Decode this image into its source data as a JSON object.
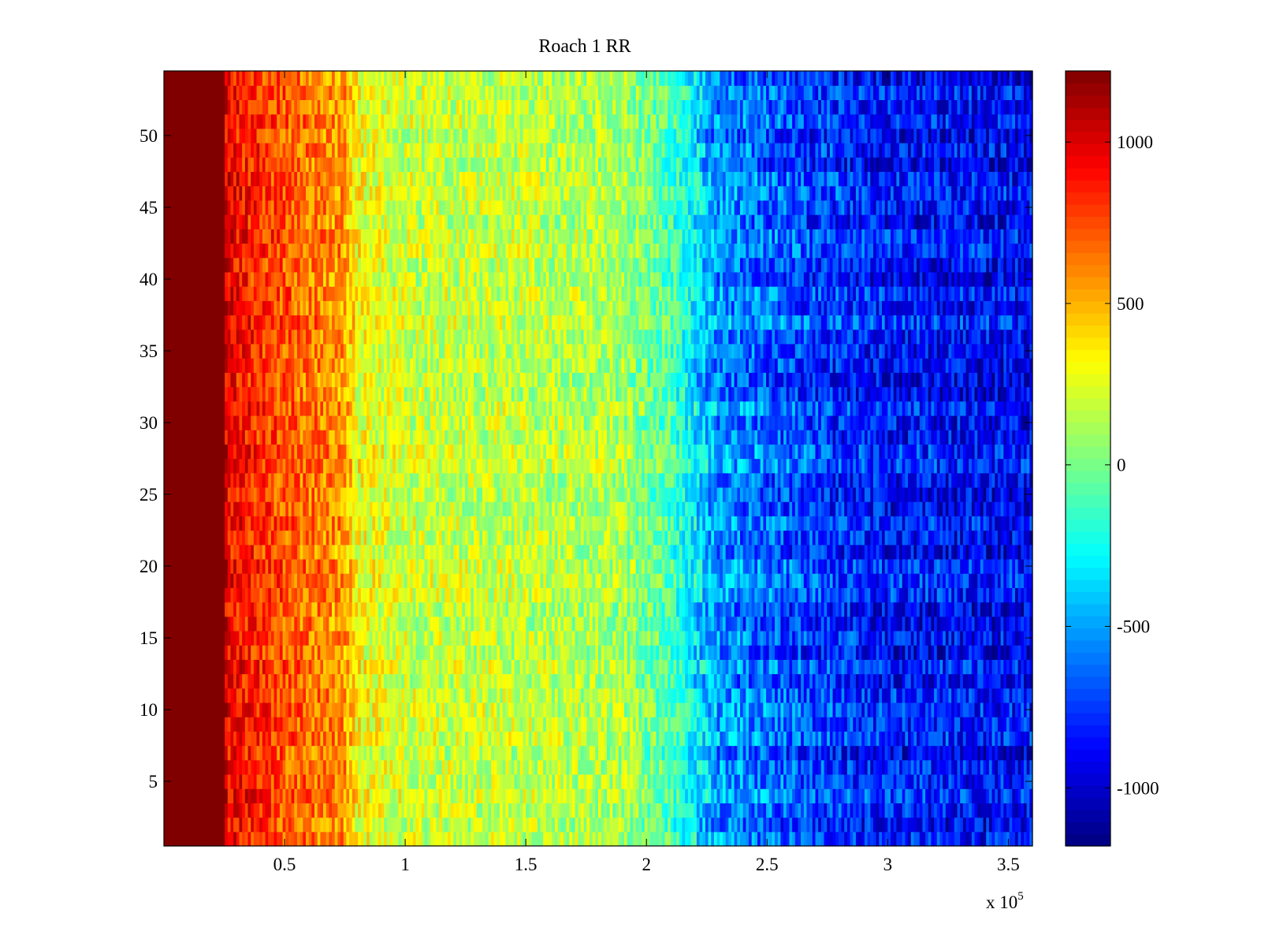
{
  "chart_data": {
    "type": "heatmap",
    "title": "Roach 1 RR",
    "xlabel": "",
    "ylabel": "",
    "x_multiplier_label": {
      "base": "x 10",
      "exponent": "5"
    },
    "xlim": [
      0,
      3.6
    ],
    "ylim": [
      0.5,
      54.5
    ],
    "xticks": [
      {
        "value": 0.5,
        "label": "0.5"
      },
      {
        "value": 1,
        "label": "1"
      },
      {
        "value": 1.5,
        "label": "1.5"
      },
      {
        "value": 2,
        "label": "2"
      },
      {
        "value": 2.5,
        "label": "2.5"
      },
      {
        "value": 3,
        "label": "3"
      },
      {
        "value": 3.5,
        "label": "3.5"
      }
    ],
    "yticks": [
      {
        "value": 5,
        "label": "5"
      },
      {
        "value": 10,
        "label": "10"
      },
      {
        "value": 15,
        "label": "15"
      },
      {
        "value": 20,
        "label": "20"
      },
      {
        "value": 25,
        "label": "25"
      },
      {
        "value": 30,
        "label": "30"
      },
      {
        "value": 35,
        "label": "35"
      },
      {
        "value": 40,
        "label": "40"
      },
      {
        "value": 45,
        "label": "45"
      },
      {
        "value": 50,
        "label": "50"
      }
    ],
    "colorbar": {
      "colormap": "jet",
      "range": [
        -1180,
        1220
      ],
      "ticks": [
        {
          "value": 1000,
          "label": "1000"
        },
        {
          "value": 500,
          "label": "500"
        },
        {
          "value": 0,
          "label": "0"
        },
        {
          "value": -500,
          "label": "-500"
        },
        {
          "value": -1000,
          "label": "-1000"
        }
      ]
    },
    "rows": 54,
    "x_range": [
      0,
      3.6
    ],
    "value_profile": [
      {
        "x": 0.0,
        "value": 1220
      },
      {
        "x": 0.25,
        "value": 1220
      },
      {
        "x": 0.26,
        "value": 950
      },
      {
        "x": 0.5,
        "value": 720
      },
      {
        "x": 0.75,
        "value": 560
      },
      {
        "x": 0.8,
        "value": 300
      },
      {
        "x": 1.0,
        "value": 200
      },
      {
        "x": 1.5,
        "value": 170
      },
      {
        "x": 1.9,
        "value": 110
      },
      {
        "x": 2.1,
        "value": -100
      },
      {
        "x": 2.3,
        "value": -550
      },
      {
        "x": 2.7,
        "value": -750
      },
      {
        "x": 3.0,
        "value": -850
      },
      {
        "x": 3.6,
        "value": -900
      }
    ],
    "grid": false
  }
}
